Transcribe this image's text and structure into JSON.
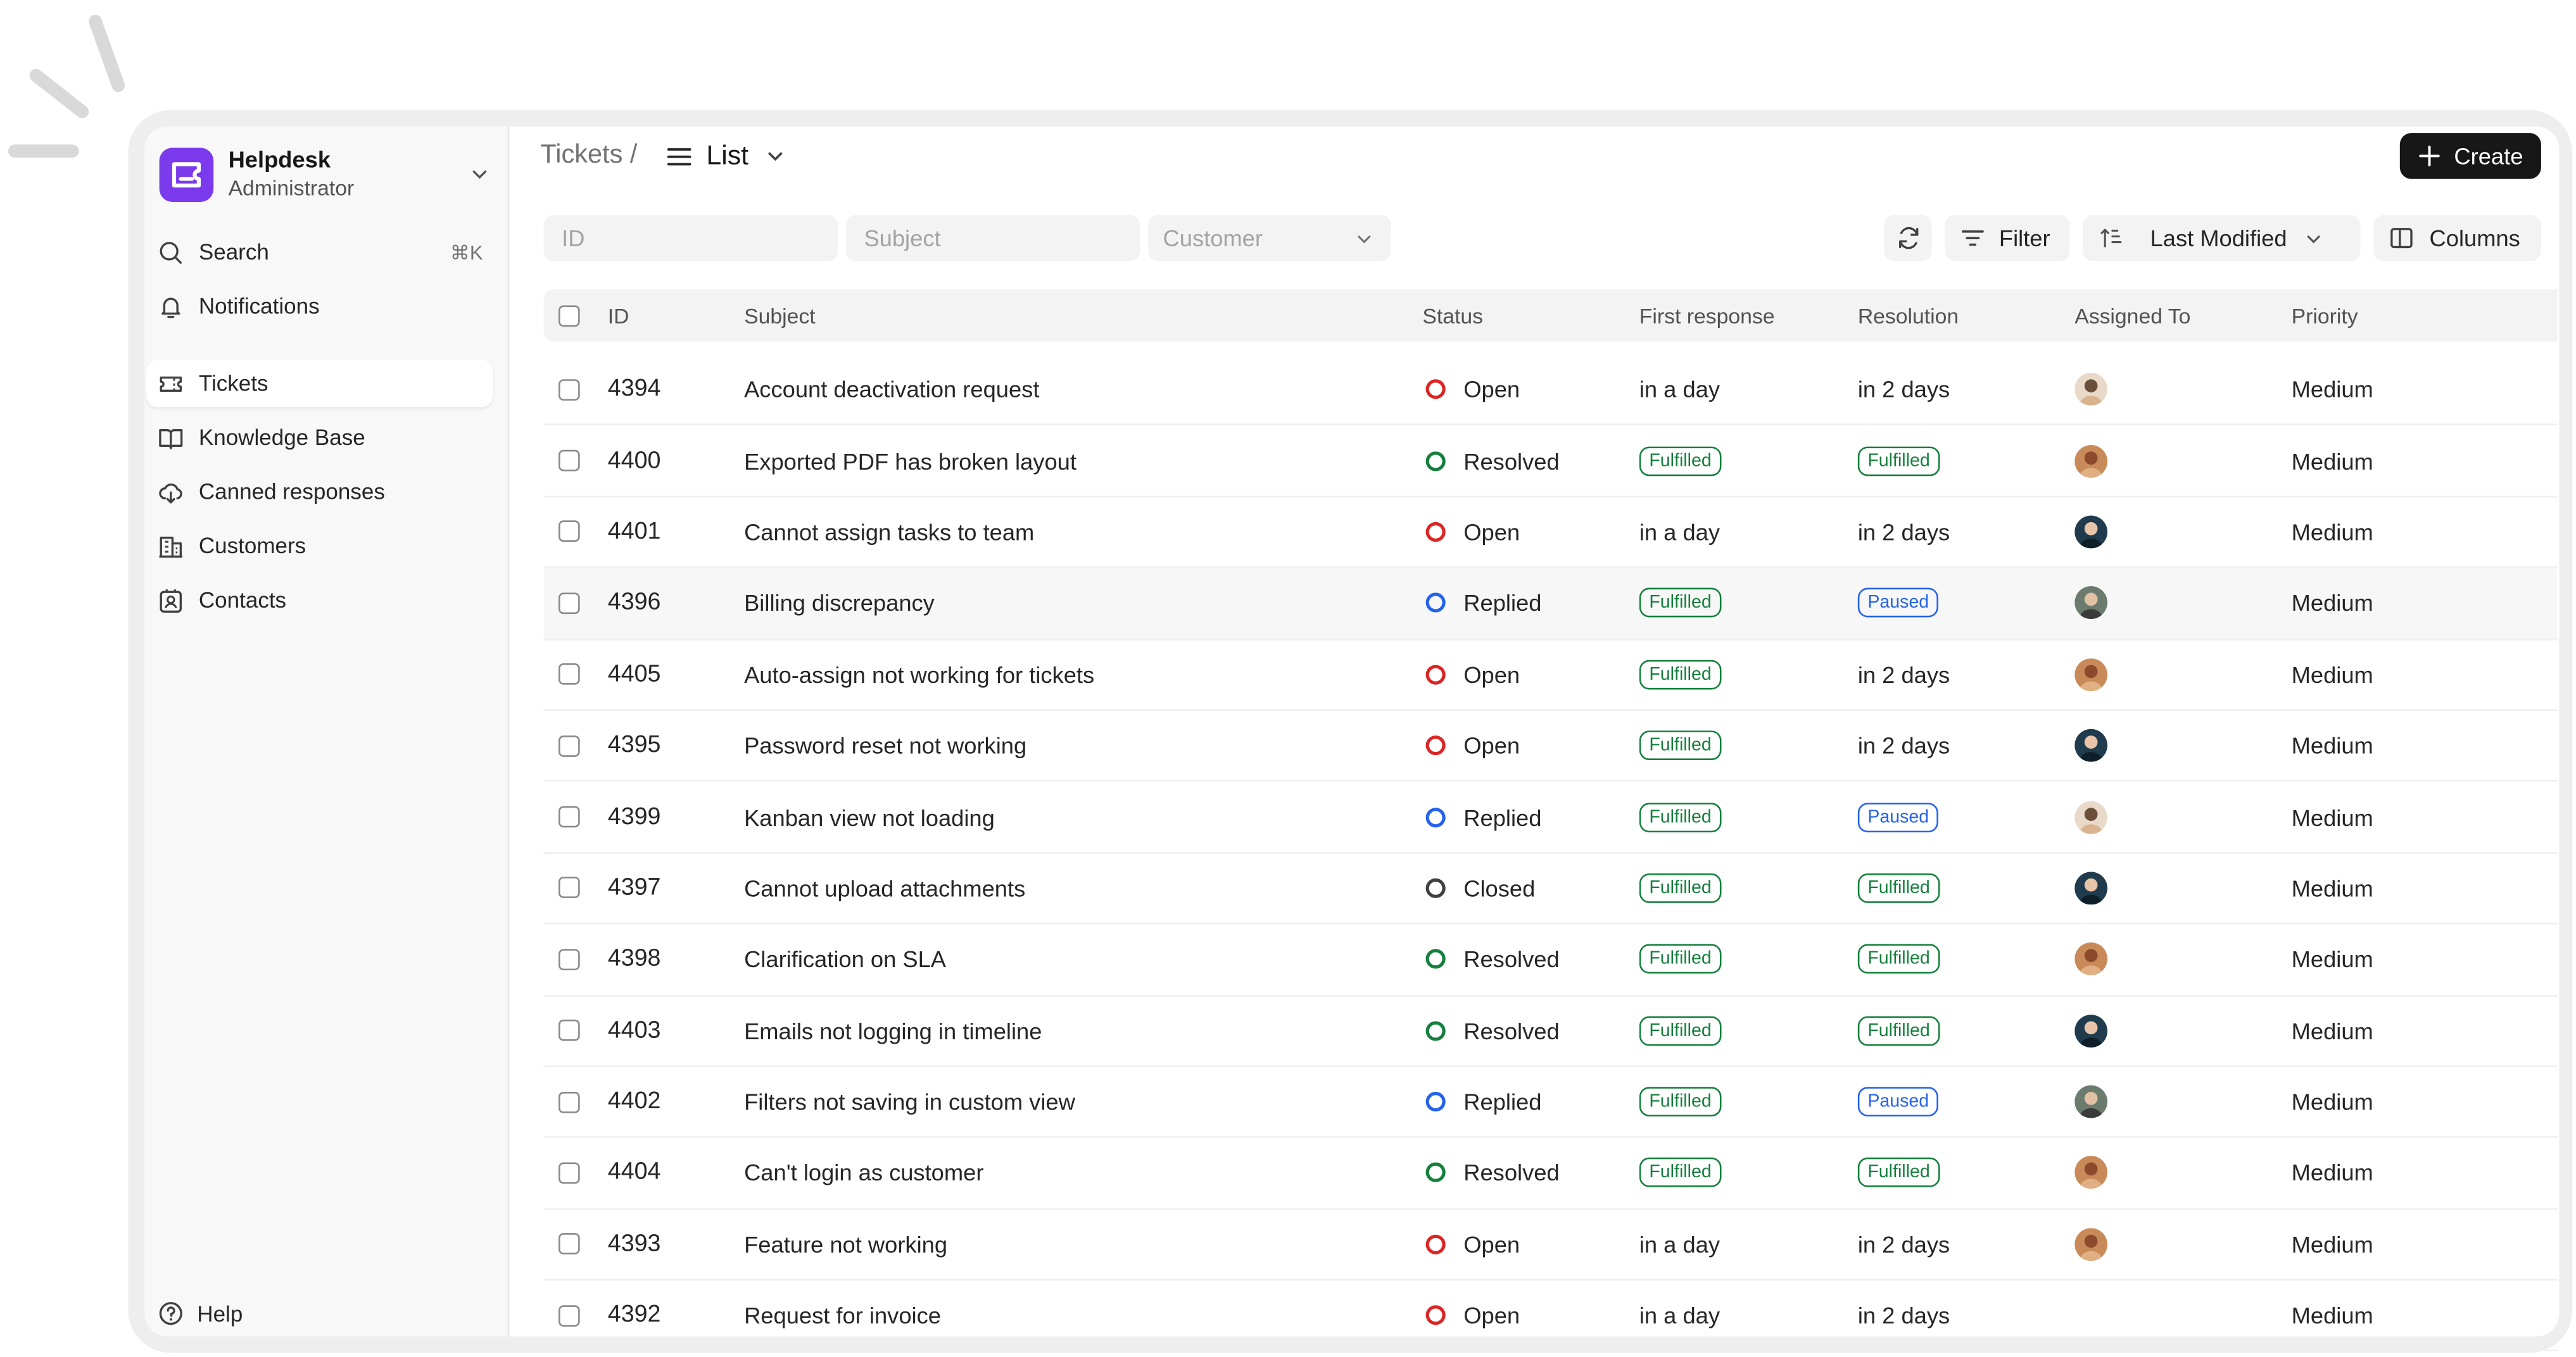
{
  "app": {
    "name": "Helpdesk",
    "role": "Administrator",
    "brand_color": "#7c3aed"
  },
  "sidebar": {
    "search": {
      "label": "Search",
      "shortcut": "⌘K"
    },
    "notifications": {
      "label": "Notifications"
    },
    "items": [
      {
        "label": "Tickets",
        "icon": "ticket-icon",
        "active": true
      },
      {
        "label": "Knowledge Base",
        "icon": "book-icon",
        "active": false
      },
      {
        "label": "Canned responses",
        "icon": "cloud-icon",
        "active": false
      },
      {
        "label": "Customers",
        "icon": "building-icon",
        "active": false
      },
      {
        "label": "Contacts",
        "icon": "contact-icon",
        "active": false
      }
    ],
    "help": "Help"
  },
  "header": {
    "breadcrumb_root": "Tickets /",
    "view": "List",
    "create_label": "Create"
  },
  "filters": {
    "id_placeholder": "ID",
    "subject_placeholder": "Subject",
    "customer_placeholder": "Customer",
    "filter_label": "Filter",
    "sort_label": "Last Modified",
    "columns_label": "Columns"
  },
  "table": {
    "columns": [
      "ID",
      "Subject",
      "Status",
      "First response",
      "Resolution",
      "Assigned To",
      "Priority"
    ],
    "rows": [
      {
        "id": "4394",
        "subject": "Account deactivation request",
        "status": "Open",
        "first_response": "in a day",
        "resolution": "in 2 days",
        "assignee": "a",
        "priority": "Medium"
      },
      {
        "id": "4400",
        "subject": "Exported PDF has broken layout",
        "status": "Resolved",
        "first_response": "Fulfilled",
        "resolution": "Fulfilled",
        "assignee": "b",
        "priority": "Medium"
      },
      {
        "id": "4401",
        "subject": "Cannot assign tasks to team",
        "status": "Open",
        "first_response": "in a day",
        "resolution": "in 2 days",
        "assignee": "c",
        "priority": "Medium"
      },
      {
        "id": "4396",
        "subject": "Billing discrepancy",
        "status": "Replied",
        "first_response": "Fulfilled",
        "resolution": "Paused",
        "assignee": "d",
        "priority": "Medium"
      },
      {
        "id": "4405",
        "subject": "Auto-assign not working for tickets",
        "status": "Open",
        "first_response": "Fulfilled",
        "resolution": "in 2 days",
        "assignee": "b",
        "priority": "Medium"
      },
      {
        "id": "4395",
        "subject": "Password reset not working",
        "status": "Open",
        "first_response": "Fulfilled",
        "resolution": "in 2 days",
        "assignee": "c",
        "priority": "Medium"
      },
      {
        "id": "4399",
        "subject": "Kanban view not loading",
        "status": "Replied",
        "first_response": "Fulfilled",
        "resolution": "Paused",
        "assignee": "a",
        "priority": "Medium"
      },
      {
        "id": "4397",
        "subject": "Cannot upload attachments",
        "status": "Closed",
        "first_response": "Fulfilled",
        "resolution": "Fulfilled",
        "assignee": "c",
        "priority": "Medium"
      },
      {
        "id": "4398",
        "subject": "Clarification on SLA",
        "status": "Resolved",
        "first_response": "Fulfilled",
        "resolution": "Fulfilled",
        "assignee": "b",
        "priority": "Medium"
      },
      {
        "id": "4403",
        "subject": "Emails not logging in timeline",
        "status": "Resolved",
        "first_response": "Fulfilled",
        "resolution": "Fulfilled",
        "assignee": "c",
        "priority": "Medium"
      },
      {
        "id": "4402",
        "subject": "Filters not saving in custom view",
        "status": "Replied",
        "first_response": "Fulfilled",
        "resolution": "Paused",
        "assignee": "d",
        "priority": "Medium"
      },
      {
        "id": "4404",
        "subject": "Can't login as customer",
        "status": "Resolved",
        "first_response": "Fulfilled",
        "resolution": "Fulfilled",
        "assignee": "b",
        "priority": "Medium"
      },
      {
        "id": "4393",
        "subject": "Feature not working",
        "status": "Open",
        "first_response": "in a day",
        "resolution": "in 2 days",
        "assignee": "b",
        "priority": "Medium"
      },
      {
        "id": "4392",
        "subject": "Request for invoice",
        "status": "Open",
        "first_response": "in a day",
        "resolution": "in 2 days",
        "assignee": "",
        "priority": "Medium"
      }
    ]
  },
  "colors": {
    "open": "#dc2626",
    "resolved": "#15803d",
    "replied": "#2563eb",
    "closed": "#404040",
    "fulfilled_pill": "#15803d",
    "paused_pill": "#2563eb"
  }
}
